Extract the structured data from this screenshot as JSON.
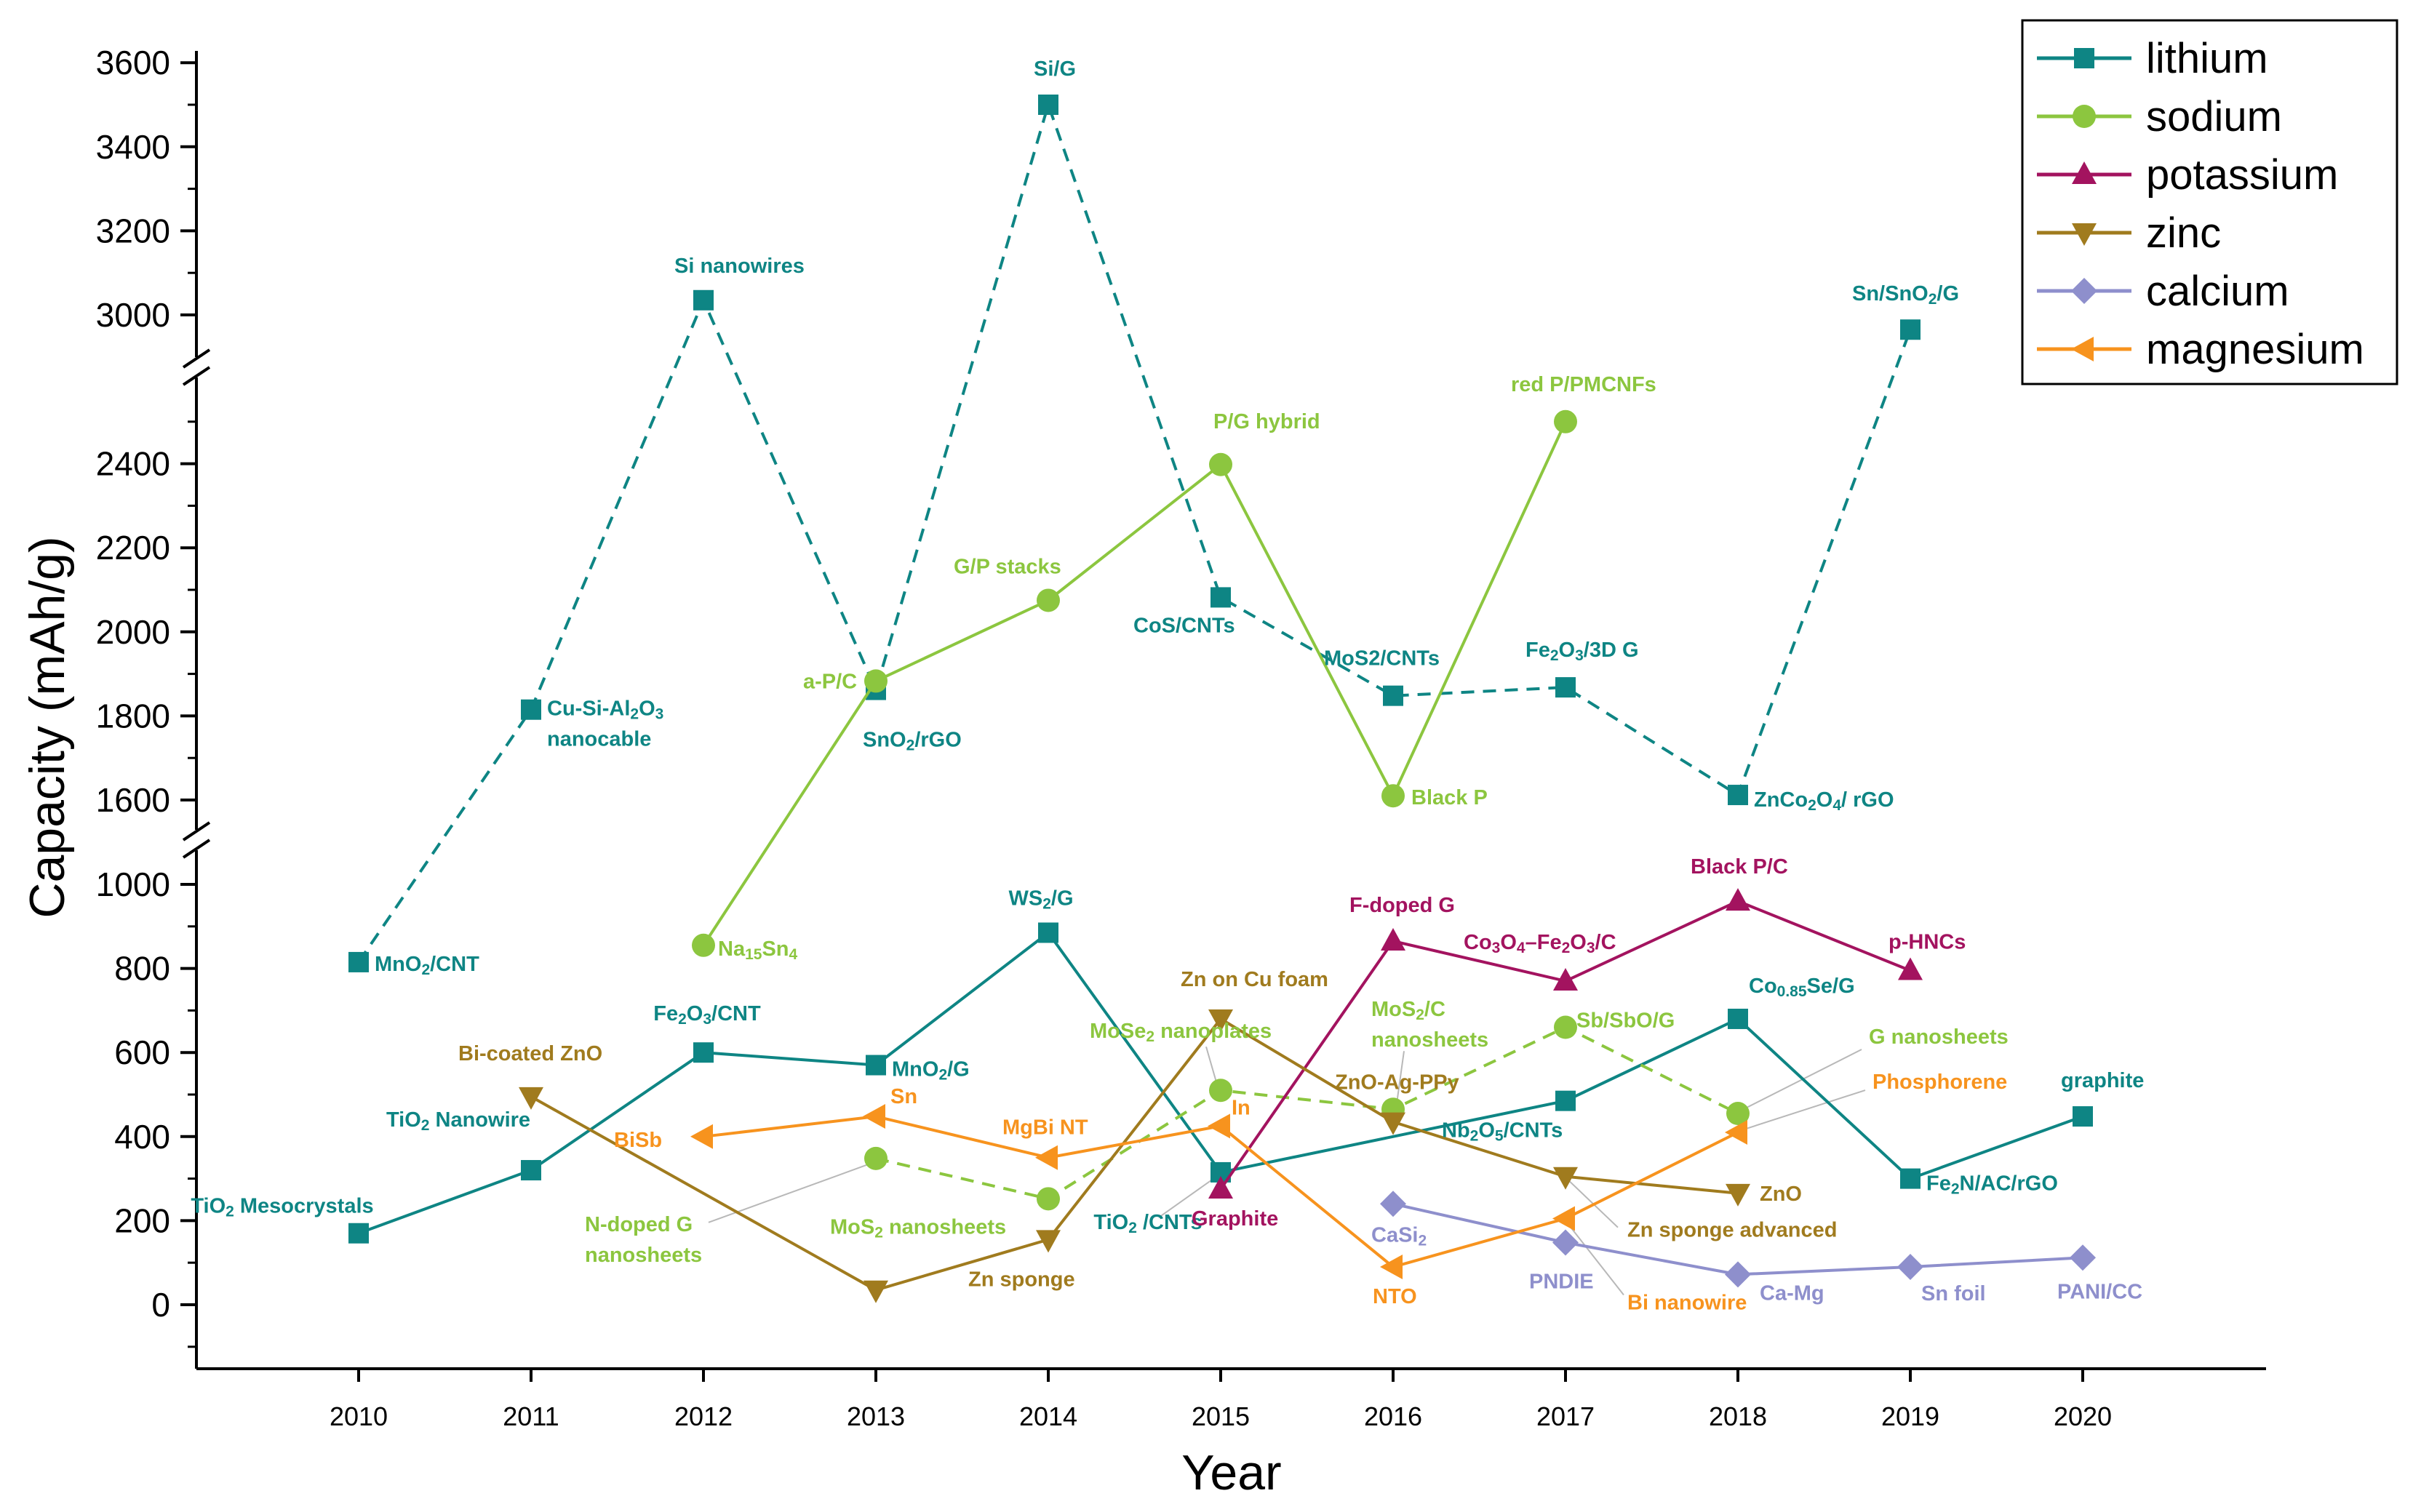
{
  "chart_data": {
    "type": "line",
    "title": "",
    "xlabel": "Year",
    "ylabel": "Capacity (mAh/g)",
    "x_ticks": [
      "2010",
      "2011",
      "2012",
      "2013",
      "2014",
      "2015",
      "2016",
      "2017",
      "2018",
      "2019",
      "2020"
    ],
    "y_axis_segments": [
      {
        "range": [
          -150,
          1100
        ],
        "ticks": [
          "0",
          "200",
          "400",
          "600",
          "800",
          "1000"
        ]
      },
      {
        "range": [
          1500,
          2600
        ],
        "ticks": [
          "1600",
          "1800",
          "2000",
          "2200",
          "2400"
        ]
      },
      {
        "range": [
          2900,
          3650
        ],
        "ticks": [
          "3000",
          "3200",
          "3400",
          "3600"
        ]
      }
    ],
    "axis_breaks": [
      1050,
      2650
    ],
    "legend_position": "top-right",
    "series": [
      {
        "key": "li_low",
        "name": "lithium",
        "color": "#0E8584",
        "marker": "square",
        "style": "solid",
        "legend": true,
        "points": [
          {
            "x": 2010,
            "y": 170,
            "label": "TiO<sub>2</sub> Mesocrystals"
          },
          {
            "x": 2011,
            "y": 320,
            "label": "TiO<sub>2</sub> Nanowire"
          },
          {
            "x": 2012,
            "y": 600,
            "label": "Fe<sub>2</sub>O<sub>3</sub>/CNT"
          },
          {
            "x": 2013,
            "y": 570,
            "label": "MnO<sub>2</sub>/G"
          },
          {
            "x": 2014,
            "y": 885,
            "label": "WS<sub>2</sub>/G"
          },
          {
            "x": 2015,
            "y": 315,
            "label": "TiO<sub>2</sub> /CNTs"
          },
          {
            "x": 2017,
            "y": 485,
            "label": "Nb<sub>2</sub>O<sub>5</sub>/CNTs"
          },
          {
            "x": 2018,
            "y": 680,
            "label": "Co<sub>0.85</sub>Se/G"
          },
          {
            "x": 2019,
            "y": 300,
            "label": "Fe<sub>2</sub>N/AC/rGO"
          },
          {
            "x": 2020,
            "y": 448,
            "label": "graphite"
          }
        ]
      },
      {
        "key": "li_high",
        "name": "lithium",
        "color": "#0E8584",
        "marker": "square",
        "style": "dashed",
        "legend": false,
        "points": [
          {
            "x": 2010,
            "y": 815,
            "label": "MnO<sub>2</sub>/CNT"
          },
          {
            "x": 2011,
            "y": 1815,
            "label": "Cu-Si-Al<sub>2</sub>O<sub>3</sub>\nnanocable"
          },
          {
            "x": 2012,
            "y": 3035,
            "label": "Si nanowires"
          },
          {
            "x": 2013,
            "y": 1862,
            "label": "SnO<sub>2</sub>/rGO"
          },
          {
            "x": 2014,
            "y": 3500,
            "label": "Si/G"
          },
          {
            "x": 2015,
            "y": 2082,
            "label": "CoS/CNTs"
          },
          {
            "x": 2016,
            "y": 1848,
            "label": "MoS2/CNTs"
          },
          {
            "x": 2017,
            "y": 1868,
            "label": "Fe<sub>2</sub>O<sub>3</sub>/3D G"
          },
          {
            "x": 2018,
            "y": 1612,
            "label": "ZnCo<sub>2</sub>O<sub>4</sub>/ rGO"
          },
          {
            "x": 2019,
            "y": 2965,
            "label": "Sn/SnO<sub>2</sub>/G"
          }
        ]
      },
      {
        "key": "na_solid",
        "name": "sodium",
        "color": "#8CC63F",
        "marker": "circle",
        "style": "solid",
        "legend": true,
        "points": [
          {
            "x": 2012,
            "y": 855,
            "label": "Na<sub>15</sub>Sn<sub>4</sub>"
          },
          {
            "x": 2013,
            "y": 1883,
            "label": "a-P/C"
          },
          {
            "x": 2014,
            "y": 2075,
            "label": "G/P stacks"
          },
          {
            "x": 2015,
            "y": 2398,
            "label": "P/G hybrid"
          },
          {
            "x": 2016,
            "y": 1610,
            "label": "Black P"
          },
          {
            "x": 2017,
            "y": 2500,
            "label": "red P/PMCNFs"
          }
        ]
      },
      {
        "key": "na_dashed",
        "name": "sodium",
        "color": "#8CC63F",
        "marker": "circle",
        "style": "dashed",
        "legend": false,
        "points": [
          {
            "x": 2013,
            "y": 348,
            "label": "N-doped G\nnanosheets"
          },
          {
            "x": 2014,
            "y": 252,
            "label": "MoS<sub>2</sub>  nanosheets"
          },
          {
            "x": 2015,
            "y": 510,
            "label": "MoSe<sub>2</sub> nanoplates"
          },
          {
            "x": 2016,
            "y": 465,
            "label": "MoS<sub>2</sub>/C\nnanosheets"
          },
          {
            "x": 2017,
            "y": 660,
            "label": "Sb/SbO/G"
          },
          {
            "x": 2018,
            "y": 455,
            "label": "G nanosheets"
          }
        ]
      },
      {
        "key": "k",
        "name": "potassium",
        "color": "#A3135F",
        "marker": "triangle-up",
        "style": "solid",
        "legend": true,
        "points": [
          {
            "x": 2015,
            "y": 275,
            "label": "Graphite"
          },
          {
            "x": 2016,
            "y": 865,
            "label": "F-doped G"
          },
          {
            "x": 2017,
            "y": 770,
            "label": "Co<sub>3</sub>O<sub>4</sub>–Fe<sub>2</sub>O<sub>3</sub>/C"
          },
          {
            "x": 2018,
            "y": 960,
            "label": "Black P/C"
          },
          {
            "x": 2019,
            "y": 795,
            "label": "p-HNCs"
          }
        ]
      },
      {
        "key": "zn",
        "name": "zinc",
        "color": "#A07B1E",
        "marker": "triangle-down",
        "style": "solid",
        "legend": true,
        "points": [
          {
            "x": 2011,
            "y": 495,
            "label": "Bi-coated ZnO"
          },
          {
            "x": 2013,
            "y": 35,
            "label": ""
          },
          {
            "x": 2014,
            "y": 155,
            "label": "Zn sponge"
          },
          {
            "x": 2015,
            "y": 680,
            "label": "Zn on Cu foam"
          },
          {
            "x": 2016,
            "y": 435,
            "label": "ZnO-Ag-PPy"
          },
          {
            "x": 2017,
            "y": 305,
            "label": "Zn sponge advanced"
          },
          {
            "x": 2018,
            "y": 265,
            "label": "ZnO"
          }
        ]
      },
      {
        "key": "ca",
        "name": "calcium",
        "color": "#8E8FCC",
        "marker": "diamond",
        "style": "solid",
        "legend": true,
        "points": [
          {
            "x": 2016,
            "y": 240,
            "label": "CaSi<sub>2</sub>"
          },
          {
            "x": 2017,
            "y": 148,
            "label": "PNDIE"
          },
          {
            "x": 2018,
            "y": 72,
            "label": "Ca-Mg"
          },
          {
            "x": 2019,
            "y": 90,
            "label": "Sn foil"
          },
          {
            "x": 2020,
            "y": 112,
            "label": "PANI/CC"
          }
        ]
      },
      {
        "key": "mg",
        "name": "magnesium",
        "color": "#F7931E",
        "marker": "triangle-left",
        "style": "solid",
        "legend": true,
        "points": [
          {
            "x": 2012,
            "y": 400,
            "label": "BiSb"
          },
          {
            "x": 2013,
            "y": 448,
            "label": "Sn"
          },
          {
            "x": 2014,
            "y": 350,
            "label": "MgBi NT"
          },
          {
            "x": 2015,
            "y": 425,
            "label": "In"
          },
          {
            "x": 2016,
            "y": 90,
            "label": "NTO"
          },
          {
            "x": 2017,
            "y": 205,
            "label": "Bi nanowire"
          },
          {
            "x": 2018,
            "y": 410,
            "label": "Phosphorene"
          }
        ]
      }
    ]
  }
}
